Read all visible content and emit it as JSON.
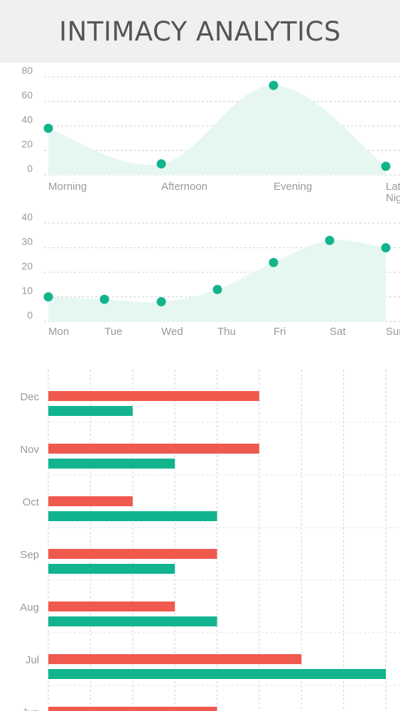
{
  "header": {
    "title": "INTIMACY ANALYTICS"
  },
  "colors": {
    "teal": "#12b48e",
    "area": "#e6f7f1",
    "red": "#f0594e",
    "grid": "#cfcfcf"
  },
  "chart_data": [
    {
      "type": "area",
      "categories": [
        "Morning",
        "Afternoon",
        "Evening",
        "Late Night"
      ],
      "values": [
        38,
        9,
        73,
        7
      ],
      "ylim": [
        0,
        80
      ],
      "yticks": [
        0,
        20,
        40,
        60,
        80
      ],
      "grid": true
    },
    {
      "type": "area",
      "categories": [
        "Mon",
        "Tue",
        "Wed",
        "Thu",
        "Fri",
        "Sat",
        "Sun"
      ],
      "values": [
        10,
        9,
        8,
        13,
        24,
        33,
        30
      ],
      "ylim": [
        0,
        40
      ],
      "yticks": [
        0,
        10,
        20,
        30,
        40
      ],
      "grid": true
    },
    {
      "type": "bar",
      "orientation": "horizontal",
      "categories": [
        "Dec",
        "Nov",
        "Oct",
        "Sep",
        "Aug",
        "Jul",
        "Jun"
      ],
      "series": [
        {
          "values": [
            5,
            5,
            2,
            4,
            3,
            6,
            4
          ]
        },
        {
          "values": [
            2,
            3,
            4,
            3,
            4,
            8,
            null
          ]
        }
      ],
      "xlim": [
        0,
        8
      ],
      "grid": true
    }
  ]
}
